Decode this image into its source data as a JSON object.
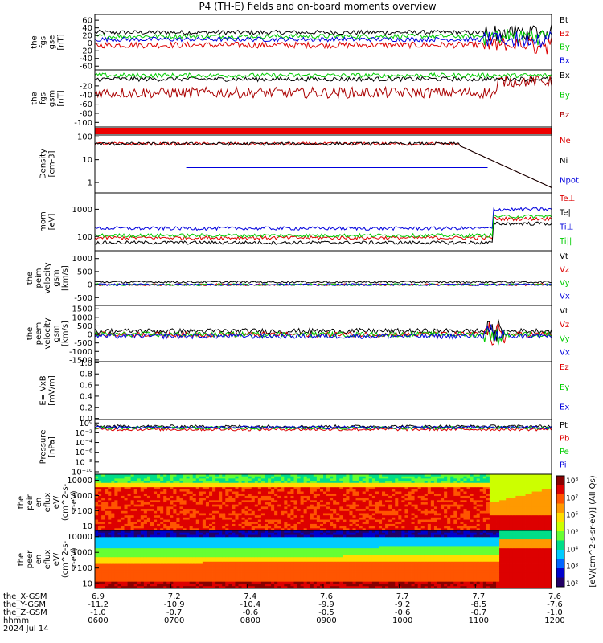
{
  "chart_data": {
    "type": "line",
    "title": "P4 (TH-E) fields and on-board moments overview",
    "panels": [
      {
        "ylabel": [
          "the",
          "fgs",
          "gse",
          "[nT]"
        ],
        "ticks": [
          "60",
          "40",
          "20",
          "0",
          "-20",
          "-40",
          "-60"
        ],
        "ylim": [
          -70,
          75
        ],
        "scale": "linear",
        "legend": [
          "Bt",
          "Bz",
          "By",
          "Bx"
        ],
        "legend_colors": [
          "#000000",
          "#dd0000",
          "#00cc00",
          "#0000dd"
        ]
      },
      {
        "ylabel": [
          "the",
          "fgs",
          "gsm",
          "[nT]"
        ],
        "ticks": [
          "-20",
          "-40",
          "-60",
          "-80",
          "-100"
        ],
        "ylim": [
          -110,
          15
        ],
        "scale": "linear",
        "legend": [
          "Bx",
          "By",
          "Bz"
        ],
        "legend_colors": [
          "#000000",
          "#00cc00",
          "#aa0000"
        ]
      },
      {
        "ylabel": [],
        "ticks": [],
        "legend": [],
        "legend_colors": []
      },
      {
        "ylabel": [
          "Density",
          "[cm-3]"
        ],
        "ticks": [
          "100",
          "10",
          "1"
        ],
        "ylim": [
          0.35,
          120
        ],
        "scale": "log",
        "legend": [
          "Ne",
          "Ni",
          "Npot"
        ],
        "legend_colors": [
          "#dd0000",
          "#000000",
          "#0000dd"
        ]
      },
      {
        "ylabel": [
          "mom",
          "[eV]"
        ],
        "ticks": [
          "1000",
          "100"
        ],
        "ylim": [
          30,
          4000
        ],
        "scale": "log",
        "legend": [
          "Te⊥",
          "Te||",
          "Ti⊥",
          "Ti||"
        ],
        "legend_colors": [
          "#dd0000",
          "#000000",
          "#0000dd",
          "#00cc00"
        ]
      },
      {
        "ylabel": [
          "the",
          "peim",
          "velocity",
          "gsm",
          "[km/s]"
        ],
        "ticks": [
          "1000",
          "500",
          "0",
          "-500"
        ],
        "ylim": [
          -800,
          1300
        ],
        "scale": "linear",
        "legend": [
          "Vt",
          "Vz",
          "Vy",
          "Vx"
        ],
        "legend_colors": [
          "#000000",
          "#dd0000",
          "#00cc00",
          "#0000dd"
        ]
      },
      {
        "ylabel": [
          "the",
          "peem",
          "velocity",
          "gsm",
          "[km/s]"
        ],
        "ticks": [
          "1500",
          "1000",
          "500",
          "0",
          "-500",
          "-1000",
          "-1500"
        ],
        "ylim": [
          -1600,
          1700
        ],
        "scale": "linear",
        "legend": [
          "Vt",
          "Vz",
          "Vy",
          "Vx"
        ],
        "legend_colors": [
          "#000000",
          "#dd0000",
          "#00cc00",
          "#0000dd"
        ]
      },
      {
        "ylabel": [
          "E=-VxB",
          "[mV/m]"
        ],
        "ticks": [
          "1.0",
          "0.8",
          "0.6",
          "0.4",
          "0.2",
          "0.0"
        ],
        "ylim": [
          -0.02,
          1.02
        ],
        "scale": "linear",
        "legend": [
          "Ez",
          "Ey",
          "Ex"
        ],
        "legend_colors": [
          "#dd0000",
          "#00cc00",
          "#0000dd"
        ]
      },
      {
        "ylabel": [
          "Pressure",
          "[nPa]"
        ],
        "ticks": [
          "10⁰",
          "10⁻²",
          "10⁻⁴",
          "10⁻⁶",
          "10⁻⁸",
          "10⁻¹⁰"
        ],
        "ylim": [
          -10.5,
          0.7
        ],
        "scale": "log",
        "legend": [
          "Pt",
          "Pb",
          "Pe",
          "Pi"
        ],
        "legend_colors": [
          "#000000",
          "#dd0000",
          "#00cc00",
          "#0000dd"
        ]
      },
      {
        "ylabel": [
          "the",
          "peir",
          "en",
          "eflux",
          "eV/",
          "(cm^2-s-",
          "sr-eV)"
        ],
        "ticks": [
          "10000",
          "1000",
          "100",
          "10"
        ],
        "ylim": [
          5,
          25000
        ],
        "scale": "log",
        "kind": "spectrogram",
        "legend": [],
        "legend_colors": []
      },
      {
        "ylabel": [
          "the",
          "peer",
          "en",
          "eflux",
          "eV/",
          "(cm^2-s-",
          "sr-eV)"
        ],
        "ticks": [
          "10000",
          "1000",
          "100",
          "10"
        ],
        "ylim": [
          5,
          25000
        ],
        "scale": "log",
        "kind": "spectrogram",
        "legend": [],
        "legend_colors": []
      }
    ],
    "colorbar": {
      "ticks": [
        "10⁸",
        "10⁷",
        "10⁶",
        "10⁵",
        "10⁴",
        "10³",
        "10²"
      ],
      "label": "[eV/(cm^2-s-sr-eV)] (All Qs)",
      "colors": [
        "#880000",
        "#dd0000",
        "#ff5500",
        "#ff9900",
        "#ffdd00",
        "#ccff00",
        "#66ff33",
        "#00dd88",
        "#00ccff",
        "#0066ff",
        "#0000cc",
        "#220066"
      ]
    },
    "x_axis": {
      "row_labels": [
        "the_X-GSM",
        "the_Y-GSM",
        "the_Z-GSM",
        "hhmm",
        "2024 Jul 14"
      ],
      "columns": [
        [
          "6.9",
          "-11.2",
          "-1.0",
          "0600"
        ],
        [
          "7.2",
          "-10.9",
          "-0.7",
          "0700"
        ],
        [
          "7.4",
          "-10.4",
          "-0.6",
          "0800"
        ],
        [
          "7.6",
          "-9.9",
          "-0.5",
          "0900"
        ],
        [
          "7.7",
          "-9.2",
          "-0.6",
          "1000"
        ],
        [
          "7.7",
          "-8.5",
          "-0.7",
          "1100"
        ],
        [
          "7.6",
          "-7.6",
          "-1.0",
          "1200"
        ]
      ]
    },
    "series_summary": {
      "fgs_gse": {
        "Bt": 28,
        "Bz": -5,
        "By": 18,
        "Bx": 10
      },
      "fgs_gsm": {
        "Bx": -5,
        "By": 3,
        "Bz": -35
      },
      "density": {
        "Ne_start": 60,
        "Ne_mid": 40,
        "Ne_end": 3,
        "Npot": 4.5
      },
      "temps": {
        "Te_perp": 90,
        "Te_par": 60,
        "Ti_perp": 200,
        "Ti_par": 110
      },
      "pressure": {
        "Pt": 0.2,
        "Pb": 0.05,
        "Pe": 0.1,
        "Pi": 0.12
      }
    }
  }
}
